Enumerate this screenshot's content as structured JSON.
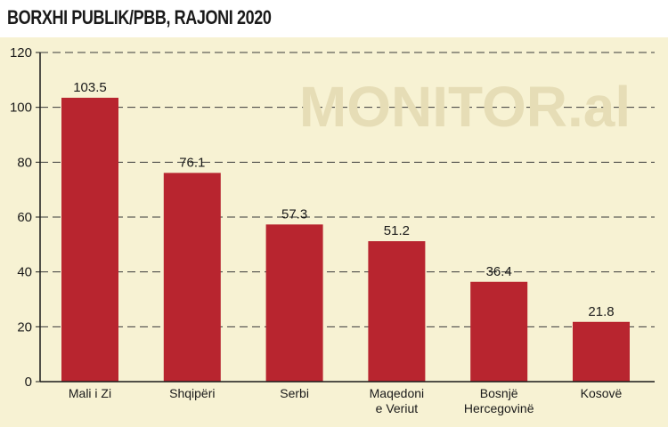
{
  "chart_data": {
    "type": "bar",
    "title": "BORXHI PUBLIK/PBB, RAJONI 2020",
    "categories": [
      [
        "Mali i Zi"
      ],
      [
        "Shqipëri"
      ],
      [
        "Serbi"
      ],
      [
        "Maqedoni",
        "e Veriut"
      ],
      [
        "Bosnjë",
        "Hercegovinë"
      ],
      [
        "Kosovë"
      ]
    ],
    "values": [
      103.5,
      76.1,
      57.3,
      51.2,
      36.4,
      21.8
    ],
    "value_labels": [
      "103.5",
      "76.1",
      "57.3",
      "51.2",
      "36.4",
      "21.8"
    ],
    "ylim": [
      0,
      120
    ],
    "yticks": [
      0,
      20,
      40,
      60,
      80,
      100,
      120
    ],
    "grid": true,
    "bar_color": "#b8252f",
    "watermark": "MONITOR.al"
  }
}
